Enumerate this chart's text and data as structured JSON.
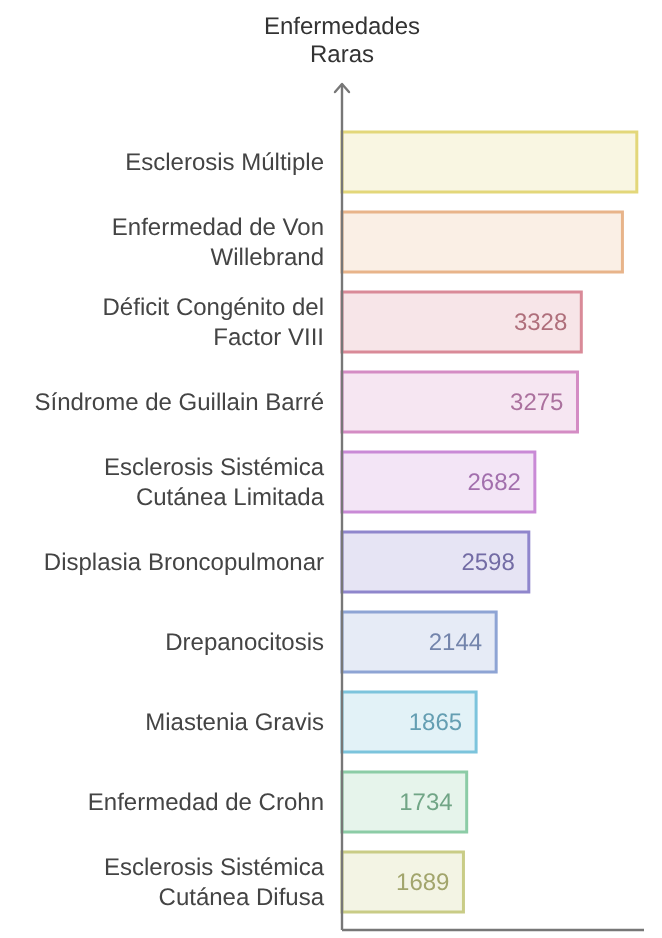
{
  "chart_data": {
    "type": "bar",
    "orientation": "horizontal",
    "ylabel": "Enfermedades Raras",
    "categories": [
      "Esclerosis Múltiple",
      "Enfermedad de Von Willebrand",
      "Déficit Congénito del Factor VIII",
      "Síndrome de Guillain Barré",
      "Esclerosis Sistémica Cutánea Limitada",
      "Displasia Broncopulmonar",
      "Drepanocitosis",
      "Miastenia Gravis",
      "Enfermedad de Crohn",
      "Esclerosis Sistémica Cutánea Difusa"
    ],
    "values": [
      4100,
      3900,
      3328,
      3275,
      2682,
      2598,
      2144,
      1865,
      1734,
      1689
    ],
    "colors": [
      "#e3d77a",
      "#e8b48a",
      "#d98a98",
      "#d48cc4",
      "#c98ad6",
      "#8f86cc",
      "#8ea4d4",
      "#7cc4dc",
      "#8ccca6",
      "#c9cc86"
    ],
    "value_labels": [
      null,
      null,
      "3328",
      "3275",
      "2682",
      "2598",
      "2144",
      "1865",
      "1734",
      "1689"
    ],
    "xlim": [
      0,
      4200
    ],
    "tick_labels": "y"
  }
}
